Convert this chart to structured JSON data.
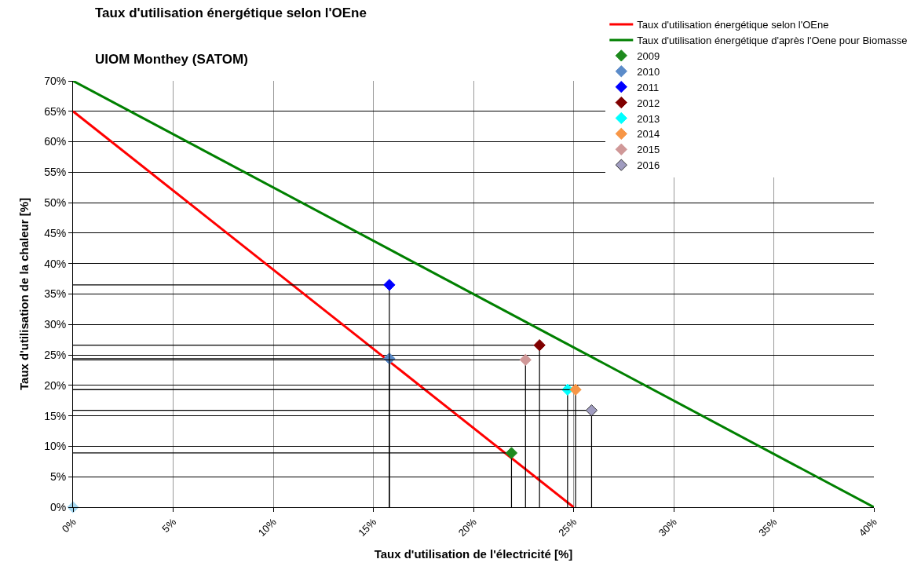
{
  "chart_data": {
    "type": "scatter",
    "title": "Taux d'utilisation énergétique selon l'OEne",
    "subtitle": "UIOM Monthey (SATOM)",
    "xlabel": "Taux d'utilisation de l'électricité [%]",
    "ylabel": "Taux d'utilisation de la chaleur [%]",
    "marker": "diamond",
    "grid": true,
    "legend": "top right",
    "xlim": [
      0,
      40
    ],
    "ylim": [
      0,
      70
    ],
    "xticks": [
      {
        "value": 0,
        "label": "0%"
      },
      {
        "value": 5,
        "label": "5%"
      },
      {
        "value": 10,
        "label": "10%"
      },
      {
        "value": 15,
        "label": "15%"
      },
      {
        "value": 20,
        "label": "20%"
      },
      {
        "value": 25,
        "label": "25%"
      },
      {
        "value": 30,
        "label": "30%"
      },
      {
        "value": 35,
        "label": "35%"
      },
      {
        "value": 40,
        "label": "40%"
      }
    ],
    "yticks": [
      {
        "value": 0,
        "label": "0%"
      },
      {
        "value": 5,
        "label": "5%"
      },
      {
        "value": 10,
        "label": "10%"
      },
      {
        "value": 15,
        "label": "15%"
      },
      {
        "value": 20,
        "label": "20%"
      },
      {
        "value": 25,
        "label": "25%"
      },
      {
        "value": 30,
        "label": "30%"
      },
      {
        "value": 35,
        "label": "35%"
      },
      {
        "value": 40,
        "label": "40%"
      },
      {
        "value": 45,
        "label": "45%"
      },
      {
        "value": 50,
        "label": "50%"
      },
      {
        "value": 55,
        "label": "55%"
      },
      {
        "value": 60,
        "label": "60%"
      },
      {
        "value": 65,
        "label": "65%"
      },
      {
        "value": 70,
        "label": "70%"
      }
    ],
    "series": [
      {
        "name": "Taux d'utilisation énergétique selon l'OEne",
        "type": "line",
        "marker": "none",
        "color": "#ff0000",
        "x": [
          0,
          25
        ],
        "values": [
          65,
          0
        ]
      },
      {
        "name": "Taux d'utilisation énergétique d'après l'Oene pour Biomasse",
        "type": "line",
        "marker": "none",
        "color": "#008000",
        "x": [
          0,
          40
        ],
        "values": [
          70,
          0
        ]
      },
      {
        "name": "2009",
        "color": "#1e8a1e",
        "x": [
          21.9
        ],
        "values": [
          8.9
        ],
        "errors": [
          [
            0,
            8.9
          ]
        ],
        "xerrors": [
          [
            0,
            21.9
          ]
        ]
      },
      {
        "name": "2010",
        "color": "#5b8bc9",
        "x": [
          15.8
        ],
        "values": [
          24.4
        ],
        "errors": [
          [
            0,
            24.4
          ]
        ],
        "xerrors": [
          [
            0,
            15.8
          ]
        ]
      },
      {
        "name": "2011",
        "color": "#0000ff",
        "x": [
          15.8
        ],
        "values": [
          36.5
        ],
        "errors": [
          [
            0,
            36.5
          ]
        ],
        "xerrors": [
          [
            0,
            15.8
          ]
        ]
      },
      {
        "name": "2012",
        "color": "#800000",
        "x": [
          23.3
        ],
        "values": [
          26.6
        ],
        "errors": [
          [
            0,
            26.6
          ]
        ],
        "xerrors": [
          [
            0,
            23.3
          ]
        ]
      },
      {
        "name": "2013",
        "color": "#00ffff",
        "x": [
          24.7
        ],
        "values": [
          19.3
        ],
        "errors": [
          [
            0,
            19.3
          ]
        ],
        "xerrors": [
          [
            0,
            24.7
          ]
        ]
      },
      {
        "name": "2014",
        "color": "#f79646",
        "x": [
          25.1
        ],
        "values": [
          19.3
        ],
        "errors": [
          [
            0,
            19.3
          ]
        ],
        "xerrors": [
          [
            0,
            25.1
          ]
        ]
      },
      {
        "name": "2015",
        "color": "#d09898",
        "x": [
          22.6
        ],
        "values": [
          24.2
        ],
        "errors": [
          [
            0,
            24.2
          ]
        ],
        "xerrors": [
          [
            0,
            22.6
          ]
        ]
      },
      {
        "name": "2016",
        "color": "#a09cc0",
        "x": [
          25.9
        ],
        "values": [
          15.9
        ],
        "errors": [
          [
            0,
            15.9
          ]
        ],
        "xerrors": [
          [
            0,
            25.9
          ]
        ]
      },
      {
        "color": "#a6d8f0",
        "x": [
          0
        ],
        "values": [
          0
        ]
      }
    ]
  }
}
